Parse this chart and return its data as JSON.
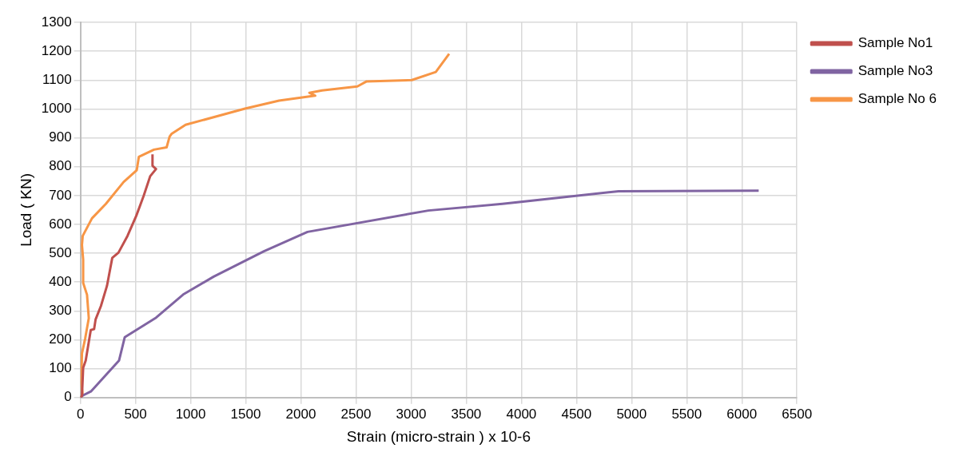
{
  "chart_data": {
    "type": "line",
    "xlabel": "Strain (micro-strain ) x 10-6",
    "ylabel": "Load ( KN)",
    "xlim": [
      0,
      6500
    ],
    "xticks": [
      0,
      500,
      1000,
      1500,
      2000,
      2500,
      3000,
      3500,
      4000,
      4500,
      5000,
      5500,
      6000,
      6500
    ],
    "ylim": [
      0,
      1300
    ],
    "yticks": [
      0,
      100,
      200,
      300,
      400,
      500,
      600,
      700,
      800,
      900,
      1000,
      1100,
      1200,
      1300
    ],
    "grid": true,
    "legend": "top right",
    "marker": "none",
    "line_style": "solid",
    "series": [
      {
        "name": "Sample No1",
        "color": "#c0504d",
        "x": [
          0,
          14,
          25,
          48,
          94,
          124,
          138,
          186,
          241,
          289,
          345,
          427,
          507,
          575,
          633,
          686,
          654,
          654
        ],
        "values": [
          0,
          6,
          103,
          128,
          234,
          237,
          271,
          317,
          387,
          484,
          502,
          560,
          630,
          700,
          767,
          792,
          803,
          843
        ]
      },
      {
        "name": "Sample No3",
        "color": "#8064a2",
        "x": [
          0,
          21,
          95,
          350,
          402,
          687,
          932,
          1209,
          1665,
          2060,
          3157,
          3828,
          4882,
          6153
        ],
        "values": [
          0,
          7,
          21,
          128,
          209,
          277,
          357,
          419,
          507,
          574,
          648,
          671,
          715,
          717
        ]
      },
      {
        "name": "Sample No 6",
        "color": "#f79646",
        "x": [
          0,
          20,
          8,
          14,
          43,
          76,
          60,
          25,
          25,
          14,
          21,
          105,
          231,
          392,
          511,
          530,
          667,
          782,
          809,
          828,
          954,
          1493,
          1802,
          2130,
          2077,
          2192,
          2512,
          2593,
          3006,
          3224,
          3345
        ],
        "values": [
          0,
          10,
          52,
          153,
          204,
          275,
          356,
          397,
          478,
          529,
          560,
          621,
          671,
          747,
          788,
          834,
          859,
          867,
          904,
          914,
          945,
          1001,
          1029,
          1046,
          1056,
          1064,
          1078,
          1095,
          1100,
          1128,
          1191
        ]
      }
    ]
  }
}
